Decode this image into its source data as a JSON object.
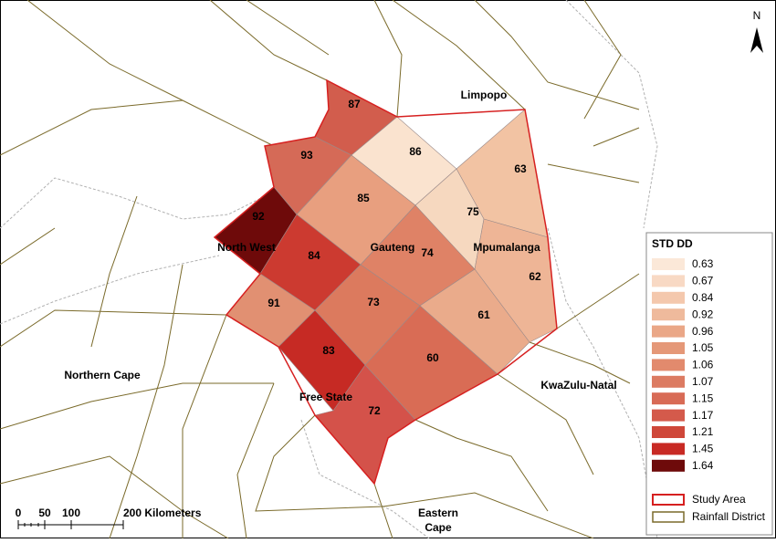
{
  "map": {
    "north": "N",
    "regions": [
      "Limpopo",
      "North West",
      "Gauteng",
      "Mpumalanga",
      "Northern Cape",
      "Free State",
      "KwaZulu-Natal"
    ],
    "region_multiline": [
      "Eastern",
      "Cape"
    ],
    "districts": [
      {
        "label": "87",
        "color": "#d25d4d"
      },
      {
        "label": "93",
        "color": "#d56a57"
      },
      {
        "label": "86",
        "color": "#fae3cf"
      },
      {
        "label": "85",
        "color": "#e89f7f"
      },
      {
        "label": "63",
        "color": "#f2c3a3"
      },
      {
        "label": "75",
        "color": "#f6d8bf"
      },
      {
        "label": "92",
        "color": "#6e0a0a"
      },
      {
        "label": "84",
        "color": "#cc3a30"
      },
      {
        "label": "74",
        "color": "#df8266"
      },
      {
        "label": "62",
        "color": "#eeb596"
      },
      {
        "label": "91",
        "color": "#e19072"
      },
      {
        "label": "73",
        "color": "#dc7a5e"
      },
      {
        "label": "61",
        "color": "#eaab8b"
      },
      {
        "label": "83",
        "color": "#c62a24"
      },
      {
        "label": "60",
        "color": "#d96c55"
      },
      {
        "label": "72",
        "color": "#d4524a"
      }
    ],
    "legend": {
      "title": "STD DD",
      "items": [
        {
          "value": 0.63,
          "color": "#fbe8d8"
        },
        {
          "value": 0.67,
          "color": "#f8d9c4"
        },
        {
          "value": 0.84,
          "color": "#f4c8ad"
        },
        {
          "value": 0.92,
          "color": "#efba9c"
        },
        {
          "value": 0.96,
          "color": "#eaa787"
        },
        {
          "value": 1.05,
          "color": "#e59878"
        },
        {
          "value": 1.06,
          "color": "#e28a6d"
        },
        {
          "value": 1.07,
          "color": "#dc7b62"
        },
        {
          "value": 1.15,
          "color": "#d86b56"
        },
        {
          "value": 1.17,
          "color": "#d45a4b"
        },
        {
          "value": 1.21,
          "color": "#cf4739"
        },
        {
          "value": 1.45,
          "color": "#c82a24"
        },
        {
          "value": 1.64,
          "color": "#6e0a0a"
        }
      ],
      "study_area": "Study Area",
      "study_area_color": "#d62020",
      "rainfall_district": "Rainfall District",
      "rainfall_district_color": "#7a6a2a"
    },
    "scale": {
      "labels": [
        "0",
        "50",
        "100",
        "200 Kilometers"
      ]
    }
  }
}
